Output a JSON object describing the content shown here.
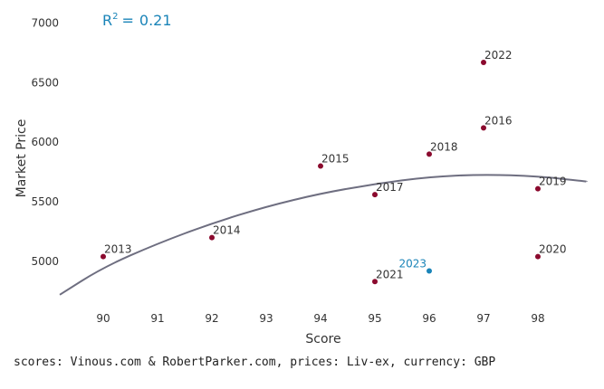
{
  "chart_data": {
    "type": "scatter",
    "title": "",
    "xlabel": "Score",
    "ylabel": "Market Price",
    "xlim": [
      89.2,
      98.9
    ],
    "ylim": [
      4650,
      7080
    ],
    "x_ticks": [
      "90",
      "91",
      "92",
      "93",
      "94",
      "95",
      "96",
      "97",
      "98"
    ],
    "y_ticks": [
      "5000",
      "5500",
      "6000",
      "6500",
      "7000"
    ],
    "grid": false,
    "legend": "none",
    "colors": {
      "point": "#8b0a2e",
      "highlight": "#1a84b8",
      "trend": "#6e6e80",
      "text": "#333333"
    },
    "r_squared": {
      "label": "R",
      "superscript": "2",
      "equals": "=",
      "value": "0.21"
    },
    "points": [
      {
        "x": 90,
        "y": 5040,
        "label": "2013"
      },
      {
        "x": 92,
        "y": 5200,
        "label": "2014"
      },
      {
        "x": 94,
        "y": 5800,
        "label": "2015"
      },
      {
        "x": 97,
        "y": 6120,
        "label": "2016"
      },
      {
        "x": 95,
        "y": 5560,
        "label": "2017"
      },
      {
        "x": 96,
        "y": 5900,
        "label": "2018"
      },
      {
        "x": 98,
        "y": 5610,
        "label": "2019"
      },
      {
        "x": 98,
        "y": 5040,
        "label": "2020"
      },
      {
        "x": 95,
        "y": 4830,
        "label": "2021"
      },
      {
        "x": 97,
        "y": 6670,
        "label": "2022"
      }
    ],
    "highlight_points": [
      {
        "x": 96,
        "y": 4920,
        "label": "2023"
      }
    ],
    "trendline": {
      "type": "quadratic",
      "points": [
        {
          "x": 89.2,
          "y": 4720
        },
        {
          "x": 90,
          "y": 4950
        },
        {
          "x": 91,
          "y": 5150
        },
        {
          "x": 92,
          "y": 5320
        },
        {
          "x": 93,
          "y": 5460
        },
        {
          "x": 94,
          "y": 5570
        },
        {
          "x": 95,
          "y": 5650
        },
        {
          "x": 96,
          "y": 5710
        },
        {
          "x": 97,
          "y": 5730
        },
        {
          "x": 98,
          "y": 5715
        },
        {
          "x": 98.9,
          "y": 5670
        }
      ]
    }
  },
  "footer": {
    "source": "scores: Vinous.com & RobertParker.com, prices: Liv-ex, currency: GBP"
  }
}
